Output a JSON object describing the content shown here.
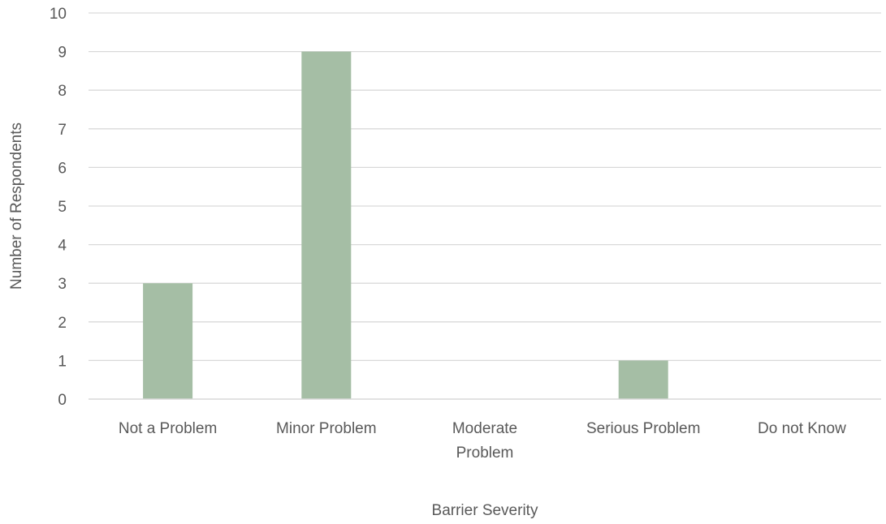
{
  "chart_data": {
    "type": "bar",
    "title": "",
    "xlabel": "Barrier Severity",
    "ylabel": "Number of Respondents",
    "categories": [
      [
        "Not a Problem"
      ],
      [
        "Minor Problem"
      ],
      [
        "Moderate",
        "Problem"
      ],
      [
        "Serious Problem"
      ],
      [
        "Do not Know"
      ]
    ],
    "values": [
      3,
      9,
      0,
      1,
      0
    ],
    "ylim": [
      0,
      10
    ],
    "yticks": [
      "0",
      "1",
      "2",
      "3",
      "4",
      "5",
      "6",
      "7",
      "8",
      "9",
      "10"
    ],
    "grid": true,
    "legend": "none",
    "colors": {
      "bar": "#a5bea5",
      "grid": "#d9d9d9",
      "axis": "#d9d9d9",
      "text": "#595959"
    }
  }
}
